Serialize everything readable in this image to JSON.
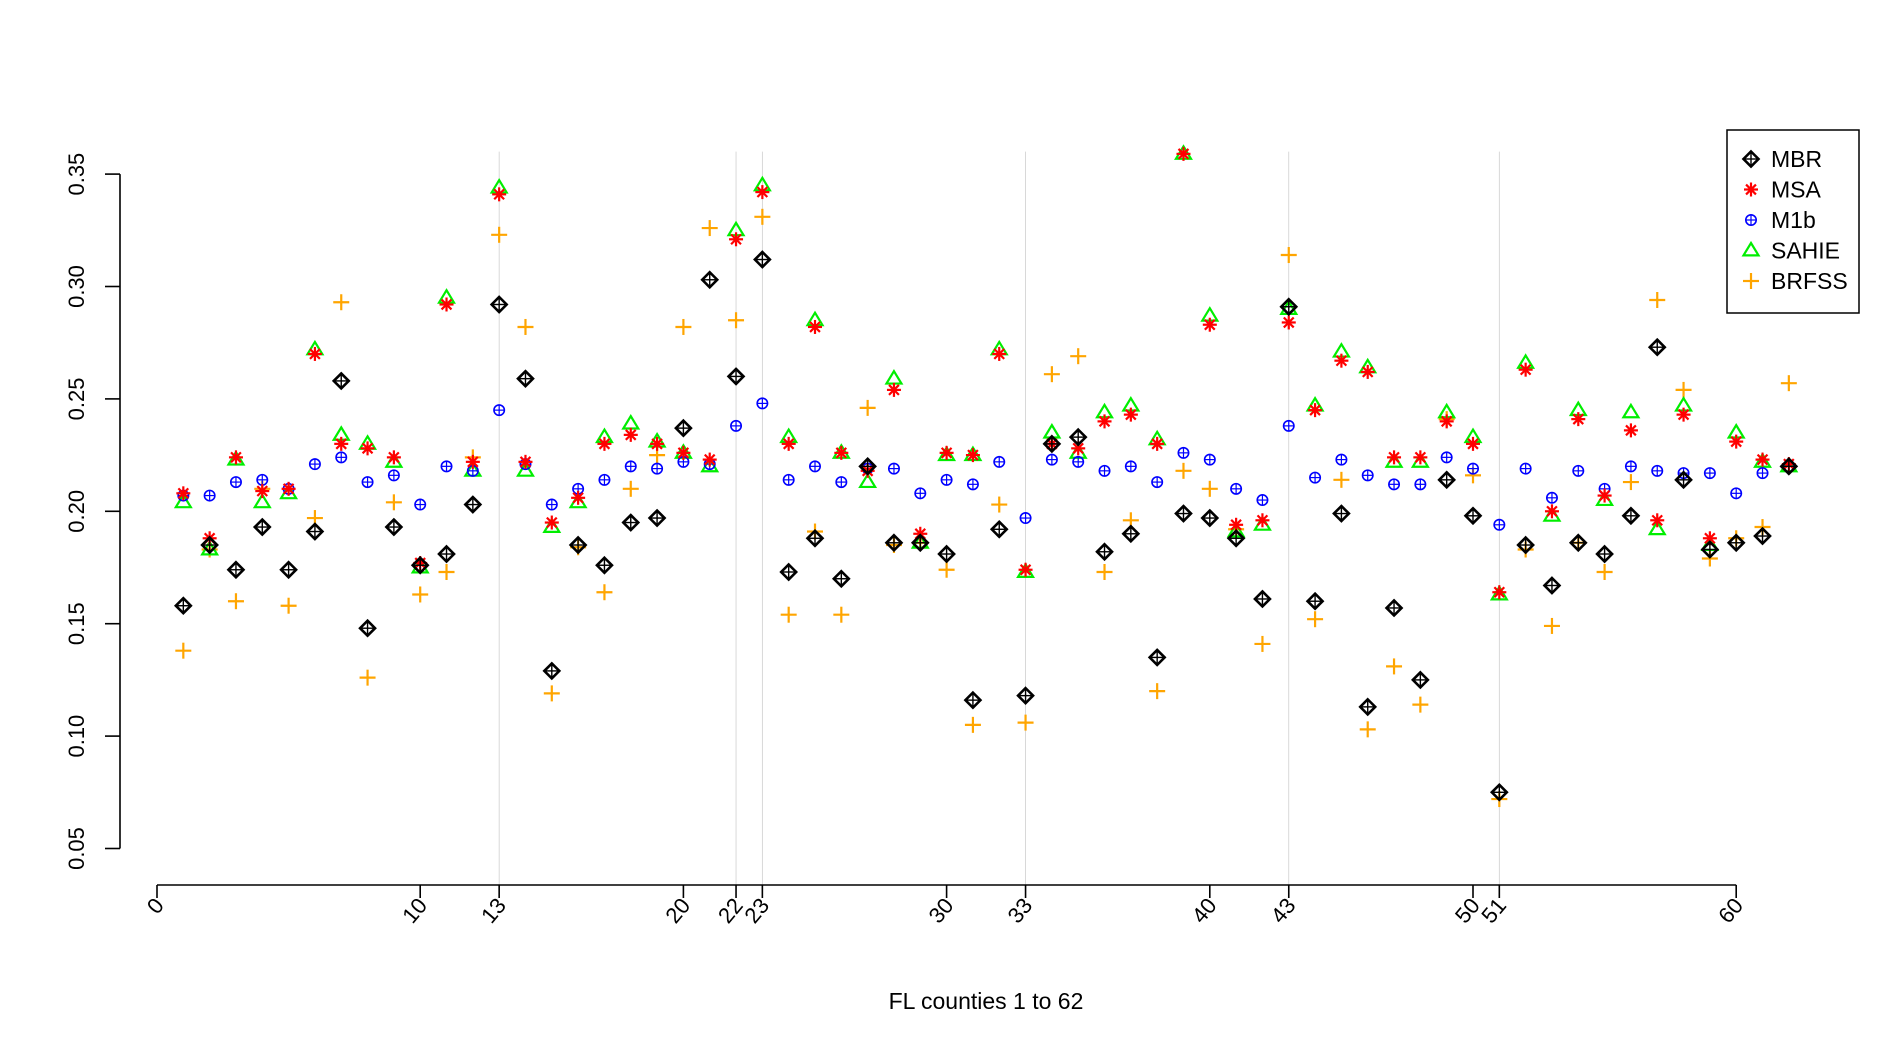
{
  "chart_data": {
    "type": "scatter",
    "title": "",
    "xlabel": "FL counties 1 to 62",
    "ylabel": "",
    "xlim": [
      0,
      62
    ],
    "ylim": [
      0.05,
      0.36
    ],
    "y_ticks": [
      "0.05",
      "0.10",
      "0.15",
      "0.20",
      "0.25",
      "0.30",
      "0.35"
    ],
    "x_ticks": [
      "0",
      "10",
      "13",
      "20",
      "22",
      "23",
      "30",
      "33",
      "40",
      "43",
      "50",
      "51",
      "60"
    ],
    "x_tick_values": [
      0,
      10,
      13,
      20,
      22,
      23,
      30,
      33,
      40,
      43,
      50,
      51,
      60
    ],
    "highlight_x": [
      13,
      22,
      23,
      33,
      43,
      51
    ],
    "grid": false,
    "legend_position": "top-right",
    "series": [
      {
        "name": "MBR",
        "color": "#000000",
        "marker": "diamond-plus",
        "values": [
          0.158,
          0.185,
          0.174,
          0.193,
          0.174,
          0.191,
          0.258,
          0.148,
          0.193,
          0.176,
          0.181,
          0.203,
          0.292,
          0.259,
          0.129,
          0.185,
          0.176,
          0.195,
          0.197,
          0.237,
          0.303,
          0.26,
          0.312,
          0.173,
          0.188,
          0.17,
          0.22,
          0.186,
          0.186,
          0.181,
          0.116,
          0.192,
          0.118,
          0.23,
          0.233,
          0.182,
          0.19,
          0.135,
          0.199,
          0.197,
          0.188,
          0.161,
          0.291,
          0.16,
          0.199,
          0.113,
          0.157,
          0.125,
          0.214,
          0.198,
          0.075,
          0.185,
          0.167,
          0.186,
          0.181,
          0.198,
          0.273,
          0.214,
          0.183,
          0.186,
          0.189,
          0.22
        ]
      },
      {
        "name": "MSA",
        "color": "#ff0000",
        "marker": "asterisk",
        "values": [
          0.208,
          0.188,
          0.224,
          0.209,
          0.21,
          0.27,
          0.23,
          0.228,
          0.224,
          0.177,
          0.292,
          0.222,
          0.341,
          0.222,
          0.195,
          0.206,
          0.23,
          0.234,
          0.23,
          0.226,
          0.223,
          0.321,
          0.342,
          0.23,
          0.282,
          0.226,
          0.218,
          0.254,
          0.19,
          0.226,
          0.225,
          0.27,
          0.174,
          0.23,
          0.228,
          0.24,
          0.243,
          0.23,
          0.359,
          0.283,
          0.194,
          0.196,
          0.284,
          0.245,
          0.267,
          0.262,
          0.224,
          0.224,
          0.24,
          0.23,
          0.164,
          0.263,
          0.2,
          0.241,
          0.207,
          0.236,
          0.196,
          0.243,
          0.188,
          0.231,
          0.223,
          0.221
        ]
      },
      {
        "name": "M1b",
        "color": "#0000ff",
        "marker": "circle-plus",
        "values": [
          0.207,
          0.207,
          0.213,
          0.214,
          0.21,
          0.221,
          0.224,
          0.213,
          0.216,
          0.203,
          0.22,
          0.218,
          0.245,
          0.221,
          0.203,
          0.21,
          0.214,
          0.22,
          0.219,
          0.222,
          0.221,
          0.238,
          0.248,
          0.214,
          0.22,
          0.213,
          0.219,
          0.219,
          0.208,
          0.214,
          0.212,
          0.222,
          0.197,
          0.223,
          0.222,
          0.218,
          0.22,
          0.213,
          0.226,
          0.223,
          0.21,
          0.205,
          0.238,
          0.215,
          0.223,
          0.216,
          0.212,
          0.212,
          0.224,
          0.219,
          0.194,
          0.219,
          0.206,
          0.218,
          0.21,
          0.22,
          0.218,
          0.217,
          0.217,
          0.208,
          0.217,
          0.22
        ]
      },
      {
        "name": "SAHIE",
        "color": "#00ee00",
        "marker": "triangle",
        "values": [
          0.204,
          0.183,
          0.223,
          0.204,
          0.208,
          0.272,
          0.234,
          0.23,
          0.222,
          0.175,
          0.295,
          0.218,
          0.344,
          0.218,
          0.193,
          0.204,
          0.233,
          0.239,
          0.231,
          0.226,
          0.22,
          0.325,
          0.345,
          0.233,
          0.285,
          0.226,
          0.213,
          0.259,
          0.186,
          0.225,
          0.225,
          0.272,
          0.173,
          0.235,
          0.226,
          0.244,
          0.247,
          0.232,
          0.359,
          0.287,
          0.191,
          0.194,
          0.29,
          0.247,
          0.271,
          0.264,
          0.222,
          0.222,
          0.244,
          0.233,
          0.163,
          0.266,
          0.198,
          0.245,
          0.205,
          0.244,
          0.192,
          0.247,
          0.185,
          0.235,
          0.222,
          0.22
        ]
      },
      {
        "name": "BRFSS",
        "color": "#ffa500",
        "marker": "plus",
        "values": [
          0.138,
          0.183,
          0.16,
          0.21,
          0.158,
          0.197,
          0.293,
          0.126,
          0.204,
          0.163,
          0.173,
          0.224,
          0.323,
          0.282,
          0.119,
          0.184,
          0.164,
          0.21,
          0.225,
          0.282,
          0.326,
          0.285,
          0.331,
          0.154,
          0.191,
          0.154,
          0.246,
          0.185,
          0.186,
          0.174,
          0.105,
          0.203,
          0.106,
          0.261,
          0.269,
          0.173,
          0.196,
          0.12,
          0.218,
          0.21,
          0.192,
          0.141,
          0.314,
          0.152,
          0.214,
          0.103,
          0.131,
          0.114,
          0.241,
          0.216,
          0.072,
          0.183,
          0.149,
          0.186,
          0.173,
          0.213,
          0.294,
          0.254,
          0.179,
          0.188,
          0.193,
          0.257
        ]
      }
    ]
  }
}
